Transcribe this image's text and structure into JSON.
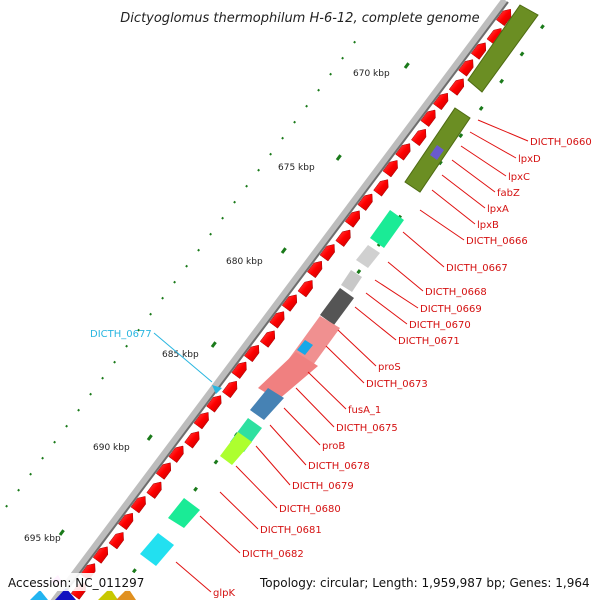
{
  "title": "Dictyoglomus thermophilum H-6-12, complete genome",
  "footer": {
    "accession": "Accession: NC_011297",
    "topology": "Topology: circular; Length: 1,959,987 bp; Genes: 1,964"
  },
  "ticks": [
    {
      "label": "670 kbp"
    },
    {
      "label": "675 kbp"
    },
    {
      "label": "680 kbp"
    },
    {
      "label": "685 kbp"
    },
    {
      "label": "690 kbp"
    },
    {
      "label": "695 kbp"
    }
  ],
  "genes": [
    {
      "label": "DICTH_0660",
      "color": "#d41111"
    },
    {
      "label": "lpxD",
      "color": "#d41111"
    },
    {
      "label": "lpxC",
      "color": "#d41111"
    },
    {
      "label": "fabZ",
      "color": "#d41111"
    },
    {
      "label": "lpxA",
      "color": "#d41111"
    },
    {
      "label": "lpxB",
      "color": "#d41111"
    },
    {
      "label": "DICTH_0666",
      "color": "#d41111"
    },
    {
      "label": "DICTH_0667",
      "color": "#d41111"
    },
    {
      "label": "DICTH_0668",
      "color": "#d41111"
    },
    {
      "label": "DICTH_0669",
      "color": "#d41111"
    },
    {
      "label": "DICTH_0670",
      "color": "#d41111"
    },
    {
      "label": "DICTH_0671",
      "color": "#d41111"
    },
    {
      "label": "proS",
      "color": "#d41111"
    },
    {
      "label": "DICTH_0673",
      "color": "#d41111"
    },
    {
      "label": "fusA_1",
      "color": "#d41111"
    },
    {
      "label": "DICTH_0675",
      "color": "#d41111"
    },
    {
      "label": "proB",
      "color": "#d41111"
    },
    {
      "label": "DICTH_0678",
      "color": "#d41111"
    },
    {
      "label": "DICTH_0679",
      "color": "#d41111"
    },
    {
      "label": "DICTH_0680",
      "color": "#d41111"
    },
    {
      "label": "DICTH_0681",
      "color": "#d41111"
    },
    {
      "label": "DICTH_0682",
      "color": "#d41111"
    },
    {
      "label": "glpK",
      "color": "#d41111"
    },
    {
      "label": "DICTH_0677",
      "color": "#29b6e0"
    }
  ],
  "colors": {
    "gene_red": "#ff0000",
    "cog_olive": "#6b8e23",
    "backbone": "#9a9a9a",
    "tick_green": "#1a7a1a"
  }
}
